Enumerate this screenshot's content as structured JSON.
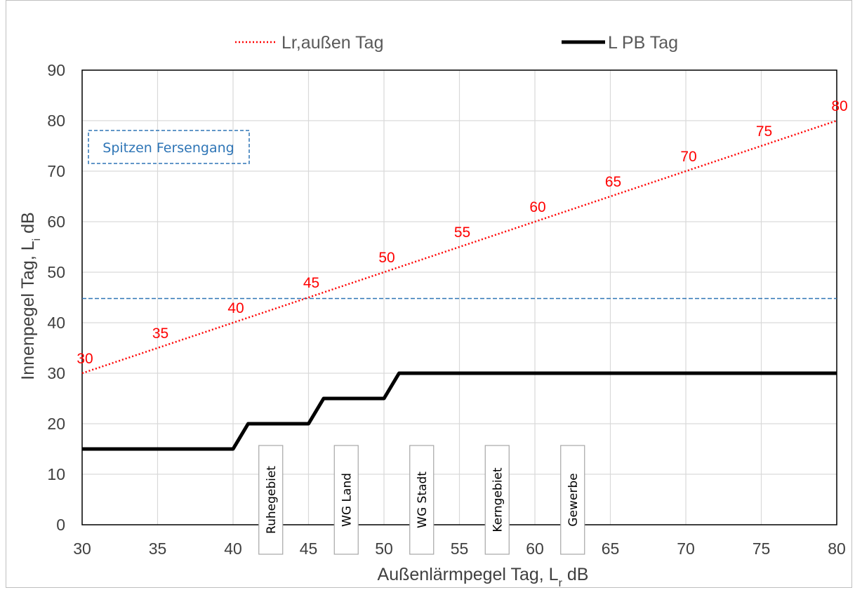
{
  "chart_data": {
    "type": "line",
    "title": "",
    "xlabel": "Außenlärmpegel Tag, L",
    "xlabel_sub": "r",
    "xlabel_unit": " dB",
    "ylabel": "Innenpegel Tag, L",
    "ylabel_sub": "i",
    "ylabel_unit": " dB",
    "xlim": [
      30,
      80
    ],
    "ylim": [
      0,
      90
    ],
    "xticks": [
      "30",
      "35",
      "40",
      "45",
      "50",
      "55",
      "60",
      "65",
      "70",
      "75",
      "80"
    ],
    "yticks": [
      "0",
      "10",
      "20",
      "30",
      "40",
      "50",
      "60",
      "70",
      "80",
      "90"
    ],
    "grid": true,
    "legend_position": "top",
    "series": [
      {
        "name": "Lr,außen Tag",
        "style": "dotted",
        "color": "#ff0000",
        "x": [
          30,
          80
        ],
        "y": [
          30,
          80
        ]
      },
      {
        "name": "L PB Tag",
        "style": "solid",
        "color": "#000000",
        "x": [
          30,
          40,
          41,
          45,
          46,
          50,
          51,
          80
        ],
        "y": [
          15,
          15,
          20,
          20,
          25,
          25,
          30,
          30
        ]
      }
    ],
    "reference_line": {
      "y": 44.8,
      "color": "#2e75b6",
      "style": "dashed"
    },
    "point_labels": [
      {
        "x": 30,
        "y": 30,
        "text": "30"
      },
      {
        "x": 35,
        "y": 35,
        "text": "35"
      },
      {
        "x": 40,
        "y": 40,
        "text": "40"
      },
      {
        "x": 45,
        "y": 45,
        "text": "45"
      },
      {
        "x": 50,
        "y": 50,
        "text": "50"
      },
      {
        "x": 55,
        "y": 55,
        "text": "55"
      },
      {
        "x": 60,
        "y": 60,
        "text": "60"
      },
      {
        "x": 65,
        "y": 65,
        "text": "65"
      },
      {
        "x": 70,
        "y": 70,
        "text": "70"
      },
      {
        "x": 75,
        "y": 75,
        "text": "75"
      },
      {
        "x": 80,
        "y": 80,
        "text": "80"
      }
    ],
    "zone_labels": [
      {
        "x": 42.5,
        "text": "Ruhegebiet"
      },
      {
        "x": 47.5,
        "text": "WG Land"
      },
      {
        "x": 52.5,
        "text": "WG Stadt"
      },
      {
        "x": 57.5,
        "text": "Kerngebiet"
      },
      {
        "x": 62.5,
        "text": "Gewerbe"
      }
    ],
    "annotation": {
      "text": "Spitzen Fersengang",
      "color": "#2e75b6"
    }
  }
}
